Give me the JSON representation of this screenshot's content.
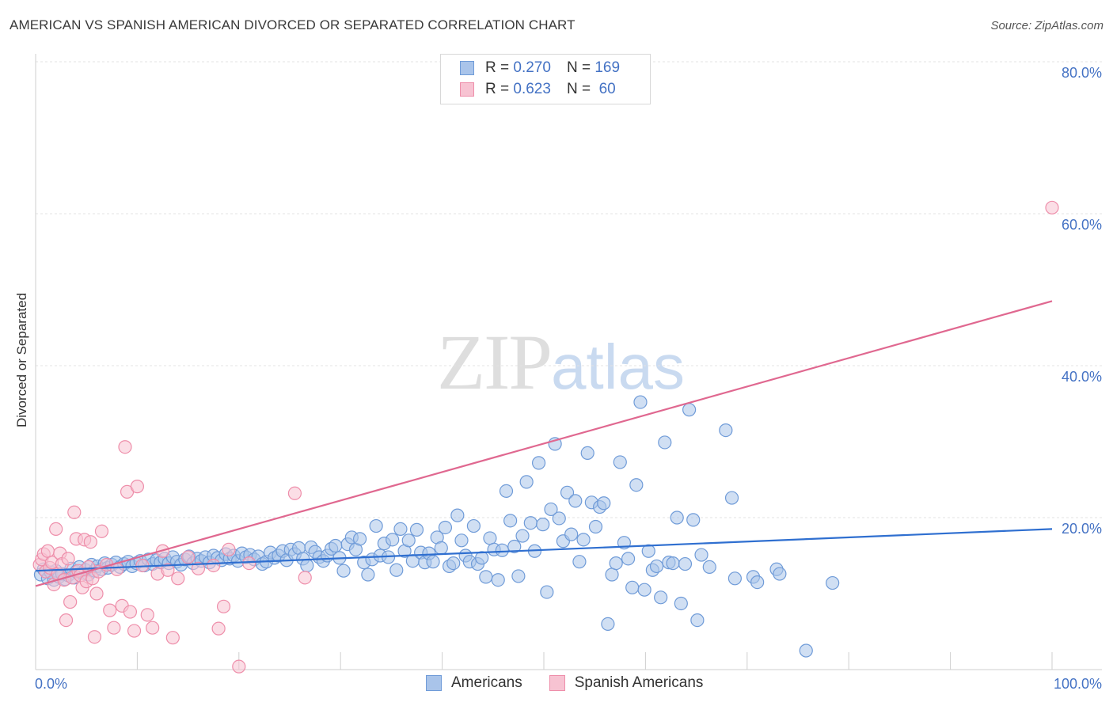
{
  "title": "AMERICAN VS SPANISH AMERICAN DIVORCED OR SEPARATED CORRELATION CHART",
  "source": "Source: ZipAtlas.com",
  "watermark": {
    "zip": "ZIP",
    "atlas": "atlas"
  },
  "legend": {
    "rows": [
      {
        "r_label": "R =",
        "r_value": "0.270",
        "n_label": "N =",
        "n_value": "169",
        "color": "#a9c4ea",
        "border": "#6f9bd8"
      },
      {
        "r_label": "R =",
        "r_value": "0.623",
        "n_label": "N =",
        "n_value": " 60",
        "color": "#f7c3d2",
        "border": "#ee8eaa"
      }
    ]
  },
  "bottom_legend": [
    {
      "label": "Americans",
      "color": "#a9c4ea",
      "border": "#6f9bd8"
    },
    {
      "label": "Spanish Americans",
      "color": "#f7c3d2",
      "border": "#ee8eaa"
    }
  ],
  "chart_data": {
    "type": "scatter",
    "xlabel": "",
    "ylabel": "Divorced or Separated",
    "xlim": [
      0,
      100
    ],
    "ylim": [
      0,
      80
    ],
    "x_tick_labels": [
      "0.0%",
      "100.0%"
    ],
    "y_ticks": [
      20,
      40,
      60,
      80
    ],
    "y_tick_labels": [
      "20.0%",
      "40.0%",
      "60.0%",
      "80.0%"
    ],
    "grid": true,
    "series": [
      {
        "name": "Americans",
        "color": "#6f9bd8",
        "fill": "#a9c4ea",
        "trend": {
          "x": [
            0,
            100
          ],
          "y": [
            13.0,
            18.5
          ],
          "color": "#2f6fd0"
        },
        "points": [
          [
            0.5,
            12.5
          ],
          [
            0.8,
            13.2
          ],
          [
            1.2,
            12.0
          ],
          [
            1.5,
            12.8
          ],
          [
            1.8,
            11.8
          ],
          [
            2.0,
            13.0
          ],
          [
            2.3,
            12.2
          ],
          [
            2.6,
            12.6
          ],
          [
            2.9,
            11.9
          ],
          [
            3.2,
            12.4
          ],
          [
            3.5,
            13.3
          ],
          [
            3.8,
            12.1
          ],
          [
            4.0,
            12.9
          ],
          [
            4.3,
            13.5
          ],
          [
            4.6,
            12.7
          ],
          [
            4.9,
            13.1
          ],
          [
            5.2,
            12.5
          ],
          [
            5.5,
            13.8
          ],
          [
            5.8,
            13.0
          ],
          [
            6.1,
            13.6
          ],
          [
            6.5,
            13.2
          ],
          [
            6.8,
            14.0
          ],
          [
            7.1,
            13.4
          ],
          [
            7.5,
            13.8
          ],
          [
            7.9,
            14.1
          ],
          [
            8.3,
            13.5
          ],
          [
            8.7,
            13.9
          ],
          [
            9.1,
            14.2
          ],
          [
            9.5,
            13.6
          ],
          [
            9.9,
            14.0
          ],
          [
            10.3,
            14.3
          ],
          [
            10.7,
            13.7
          ],
          [
            11.1,
            14.5
          ],
          [
            11.5,
            13.9
          ],
          [
            11.9,
            14.4
          ],
          [
            12.3,
            14.1
          ],
          [
            12.7,
            14.6
          ],
          [
            13.1,
            14.0
          ],
          [
            13.5,
            14.8
          ],
          [
            13.9,
            14.2
          ],
          [
            14.3,
            13.8
          ],
          [
            14.7,
            14.5
          ],
          [
            15.1,
            14.9
          ],
          [
            15.5,
            14.0
          ],
          [
            15.9,
            14.6
          ],
          [
            16.3,
            14.3
          ],
          [
            16.7,
            14.8
          ],
          [
            17.1,
            14.1
          ],
          [
            17.5,
            15.0
          ],
          [
            17.9,
            14.7
          ],
          [
            18.3,
            14.4
          ],
          [
            18.7,
            15.2
          ],
          [
            19.1,
            14.6
          ],
          [
            19.5,
            15.0
          ],
          [
            19.9,
            14.3
          ],
          [
            20.3,
            15.3
          ],
          [
            20.7,
            14.8
          ],
          [
            21.1,
            15.1
          ],
          [
            21.5,
            14.5
          ],
          [
            21.9,
            14.9
          ],
          [
            22.3,
            13.9
          ],
          [
            22.7,
            14.2
          ],
          [
            23.1,
            15.4
          ],
          [
            23.5,
            14.7
          ],
          [
            23.9,
            15.0
          ],
          [
            24.3,
            15.6
          ],
          [
            24.7,
            14.4
          ],
          [
            25.1,
            15.8
          ],
          [
            25.5,
            15.2
          ],
          [
            25.9,
            16.0
          ],
          [
            26.3,
            14.6
          ],
          [
            26.7,
            13.7
          ],
          [
            27.1,
            16.1
          ],
          [
            27.5,
            15.5
          ],
          [
            27.9,
            14.8
          ],
          [
            28.3,
            14.3
          ],
          [
            28.7,
            15.0
          ],
          [
            29.1,
            15.9
          ],
          [
            29.5,
            16.3
          ],
          [
            29.9,
            14.7
          ],
          [
            30.3,
            13.0
          ],
          [
            30.7,
            16.5
          ],
          [
            31.1,
            17.4
          ],
          [
            31.5,
            15.8
          ],
          [
            31.9,
            17.2
          ],
          [
            32.3,
            14.1
          ],
          [
            32.7,
            12.5
          ],
          [
            33.1,
            14.5
          ],
          [
            33.5,
            18.9
          ],
          [
            33.9,
            15.0
          ],
          [
            34.3,
            16.6
          ],
          [
            34.7,
            14.8
          ],
          [
            35.1,
            17.1
          ],
          [
            35.5,
            13.1
          ],
          [
            35.9,
            18.5
          ],
          [
            36.3,
            15.6
          ],
          [
            36.7,
            17.0
          ],
          [
            37.1,
            14.3
          ],
          [
            37.5,
            18.4
          ],
          [
            37.9,
            15.4
          ],
          [
            38.3,
            14.1
          ],
          [
            38.7,
            15.3
          ],
          [
            39.1,
            14.2
          ],
          [
            39.5,
            17.4
          ],
          [
            39.9,
            16.0
          ],
          [
            40.3,
            18.7
          ],
          [
            40.7,
            13.6
          ],
          [
            41.1,
            14.0
          ],
          [
            41.5,
            20.3
          ],
          [
            41.9,
            17.0
          ],
          [
            42.3,
            15.0
          ],
          [
            42.7,
            14.2
          ],
          [
            43.1,
            18.9
          ],
          [
            43.5,
            13.9
          ],
          [
            43.9,
            14.7
          ],
          [
            44.3,
            12.2
          ],
          [
            44.7,
            17.3
          ],
          [
            45.1,
            15.8
          ],
          [
            45.5,
            11.8
          ],
          [
            45.9,
            15.7
          ],
          [
            46.3,
            23.5
          ],
          [
            46.7,
            19.6
          ],
          [
            47.1,
            16.2
          ],
          [
            47.5,
            12.3
          ],
          [
            47.9,
            17.6
          ],
          [
            48.3,
            24.7
          ],
          [
            48.7,
            19.3
          ],
          [
            49.1,
            15.6
          ],
          [
            49.5,
            27.2
          ],
          [
            49.9,
            19.1
          ],
          [
            50.3,
            10.2
          ],
          [
            50.7,
            21.1
          ],
          [
            51.1,
            29.7
          ],
          [
            51.5,
            19.9
          ],
          [
            51.9,
            16.9
          ],
          [
            52.3,
            23.3
          ],
          [
            52.7,
            17.8
          ],
          [
            53.1,
            22.2
          ],
          [
            53.5,
            14.2
          ],
          [
            53.9,
            17.1
          ],
          [
            54.3,
            28.5
          ],
          [
            54.7,
            22.0
          ],
          [
            55.1,
            18.8
          ],
          [
            55.5,
            21.4
          ],
          [
            55.9,
            21.9
          ],
          [
            56.3,
            6.0
          ],
          [
            56.7,
            12.5
          ],
          [
            57.1,
            14.0
          ],
          [
            57.5,
            27.3
          ],
          [
            57.9,
            16.7
          ],
          [
            58.3,
            14.6
          ],
          [
            58.7,
            10.8
          ],
          [
            59.1,
            24.3
          ],
          [
            59.5,
            35.2
          ],
          [
            59.9,
            10.5
          ],
          [
            60.3,
            15.6
          ],
          [
            60.7,
            13.1
          ],
          [
            61.1,
            13.6
          ],
          [
            61.5,
            9.5
          ],
          [
            61.9,
            29.9
          ],
          [
            62.3,
            14.1
          ],
          [
            62.7,
            14.0
          ],
          [
            63.1,
            20.0
          ],
          [
            63.5,
            8.7
          ],
          [
            63.9,
            13.9
          ],
          [
            64.3,
            34.2
          ],
          [
            64.7,
            19.7
          ],
          [
            65.1,
            6.5
          ],
          [
            65.5,
            15.1
          ],
          [
            66.3,
            13.5
          ],
          [
            67.9,
            31.5
          ],
          [
            68.5,
            22.6
          ],
          [
            70.6,
            12.2
          ],
          [
            71.0,
            11.5
          ],
          [
            72.9,
            13.2
          ],
          [
            73.2,
            12.6
          ],
          [
            75.8,
            2.5
          ],
          [
            78.4,
            11.4
          ],
          [
            68.8,
            12.0
          ]
        ]
      },
      {
        "name": "Spanish Americans",
        "color": "#ee8eaa",
        "fill": "#f7c3d2",
        "trend": {
          "x": [
            0,
            100
          ],
          "y": [
            11.0,
            48.5
          ],
          "color": "#e06890"
        },
        "points": [
          [
            0.4,
            13.8
          ],
          [
            0.6,
            14.5
          ],
          [
            0.8,
            15.2
          ],
          [
            1.0,
            12.9
          ],
          [
            1.2,
            15.6
          ],
          [
            1.4,
            13.4
          ],
          [
            1.6,
            14.1
          ],
          [
            1.8,
            11.2
          ],
          [
            2.0,
            18.5
          ],
          [
            2.2,
            12.6
          ],
          [
            2.4,
            15.3
          ],
          [
            2.6,
            13.9
          ],
          [
            2.8,
            11.8
          ],
          [
            3.0,
            6.5
          ],
          [
            3.2,
            14.6
          ],
          [
            3.4,
            8.9
          ],
          [
            3.6,
            12.1
          ],
          [
            3.8,
            20.7
          ],
          [
            4.0,
            17.2
          ],
          [
            4.2,
            13.0
          ],
          [
            4.4,
            12.4
          ],
          [
            4.6,
            10.8
          ],
          [
            4.8,
            17.1
          ],
          [
            5.0,
            11.6
          ],
          [
            5.2,
            13.5
          ],
          [
            5.4,
            16.8
          ],
          [
            5.6,
            12.0
          ],
          [
            5.8,
            4.3
          ],
          [
            6.0,
            10.0
          ],
          [
            6.2,
            12.9
          ],
          [
            6.5,
            18.2
          ],
          [
            7.0,
            13.8
          ],
          [
            7.3,
            7.8
          ],
          [
            7.7,
            5.5
          ],
          [
            8.0,
            13.2
          ],
          [
            8.5,
            8.4
          ],
          [
            8.8,
            29.3
          ],
          [
            9.0,
            23.4
          ],
          [
            9.3,
            7.6
          ],
          [
            9.7,
            5.1
          ],
          [
            10.0,
            24.1
          ],
          [
            10.5,
            13.7
          ],
          [
            11.0,
            7.2
          ],
          [
            11.5,
            5.5
          ],
          [
            12.0,
            12.6
          ],
          [
            12.5,
            15.6
          ],
          [
            13.0,
            13.1
          ],
          [
            13.5,
            4.2
          ],
          [
            14.0,
            12.0
          ],
          [
            15.0,
            14.8
          ],
          [
            16.0,
            13.3
          ],
          [
            17.5,
            13.7
          ],
          [
            18.0,
            5.4
          ],
          [
            18.5,
            8.3
          ],
          [
            19.0,
            15.8
          ],
          [
            20.0,
            0.4
          ],
          [
            21.0,
            14.0
          ],
          [
            25.5,
            23.2
          ],
          [
            26.5,
            12.1
          ],
          [
            100.0,
            60.8
          ]
        ]
      }
    ]
  }
}
